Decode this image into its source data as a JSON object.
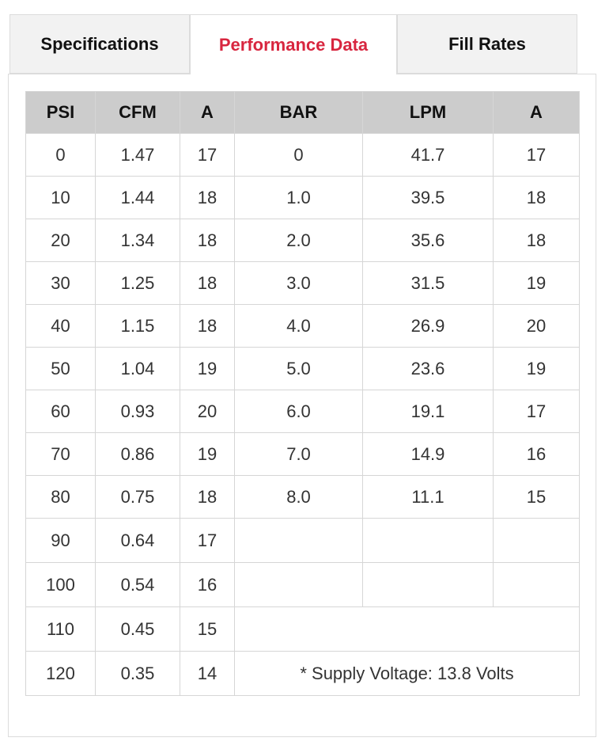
{
  "tabs": [
    {
      "label": "Specifications",
      "active": false
    },
    {
      "label": "Performance Data",
      "active": true
    },
    {
      "label": "Fill Rates",
      "active": false
    }
  ],
  "colors": {
    "active_tab": "#d8263f",
    "header_bg": "#cccccc"
  },
  "table": {
    "headers": [
      "PSI",
      "CFM",
      "A",
      "BAR",
      "LPM",
      "A"
    ],
    "rows": [
      [
        "0",
        "1.47",
        "17",
        "0",
        "41.7",
        "17"
      ],
      [
        "10",
        "1.44",
        "18",
        "1.0",
        "39.5",
        "18"
      ],
      [
        "20",
        "1.34",
        "18",
        "2.0",
        "35.6",
        "18"
      ],
      [
        "30",
        "1.25",
        "18",
        "3.0",
        "31.5",
        "19"
      ],
      [
        "40",
        "1.15",
        "18",
        "4.0",
        "26.9",
        "20"
      ],
      [
        "50",
        "1.04",
        "19",
        "5.0",
        "23.6",
        "19"
      ],
      [
        "60",
        "0.93",
        "20",
        "6.0",
        "19.1",
        "17"
      ],
      [
        "70",
        "0.86",
        "19",
        "7.0",
        "14.9",
        "16"
      ],
      [
        "80",
        "0.75",
        "18",
        "8.0",
        "11.1",
        "15"
      ],
      [
        "90",
        "0.64",
        "17",
        "",
        "",
        ""
      ],
      [
        "100",
        "0.54",
        "16",
        "",
        "",
        ""
      ],
      [
        "110",
        "0.45",
        "15"
      ],
      [
        "120",
        "0.35",
        "14"
      ]
    ],
    "note": "* Supply Voltage: 13.8 Volts"
  }
}
